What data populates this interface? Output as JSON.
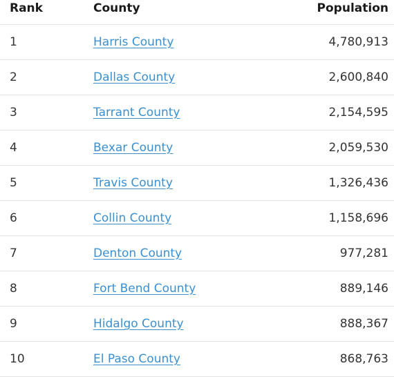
{
  "header": {
    "rank": "Rank",
    "county": "County",
    "population": "Population"
  },
  "rows": [
    {
      "rank": "1",
      "county": "Harris County",
      "population": "4,780,913"
    },
    {
      "rank": "2",
      "county": "Dallas County",
      "population": "2,600,840"
    },
    {
      "rank": "3",
      "county": "Tarrant County",
      "population": "2,154,595"
    },
    {
      "rank": "4",
      "county": "Bexar County",
      "population": "2,059,530"
    },
    {
      "rank": "5",
      "county": "Travis County",
      "population": "1,326,436"
    },
    {
      "rank": "6",
      "county": "Collin County",
      "population": "1,158,696"
    },
    {
      "rank": "7",
      "county": "Denton County",
      "population": "977,281"
    },
    {
      "rank": "8",
      "county": "Fort Bend County",
      "population": "889,146"
    },
    {
      "rank": "9",
      "county": "Hidalgo County",
      "population": "888,367"
    },
    {
      "rank": "10",
      "county": "El Paso County",
      "population": "868,763"
    }
  ],
  "colors": {
    "link": "#3a8fd0",
    "divider": "#e2e2e2"
  }
}
